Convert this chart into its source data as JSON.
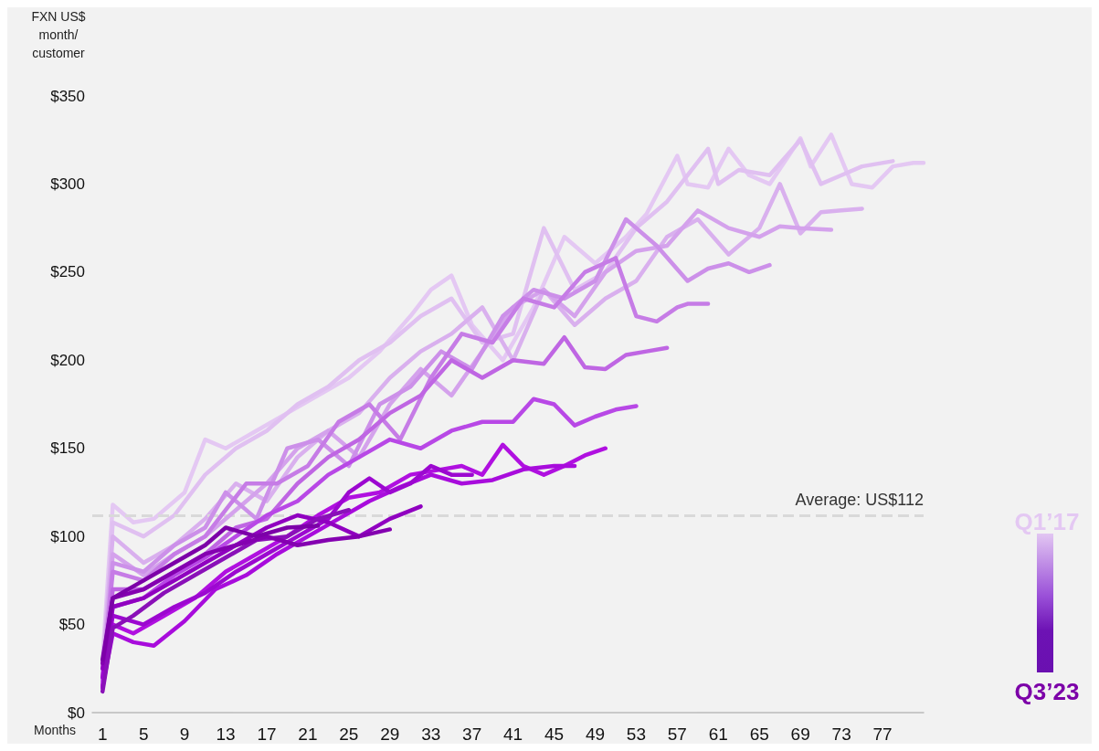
{
  "chart_data": {
    "type": "line",
    "xlabel": "Months",
    "ylabel": "FXN US$ month/ customer",
    "xlim": [
      0,
      81
    ],
    "ylim": [
      0,
      350
    ],
    "xticks": [
      1,
      5,
      9,
      13,
      17,
      21,
      25,
      29,
      33,
      37,
      41,
      45,
      49,
      53,
      57,
      61,
      65,
      69,
      73,
      77
    ],
    "yticks": [
      {
        "value": 0,
        "label": "$0"
      },
      {
        "value": 50,
        "label": "$50"
      },
      {
        "value": 100,
        "label": "$100"
      },
      {
        "value": 150,
        "label": "$150"
      },
      {
        "value": 200,
        "label": "$200"
      },
      {
        "value": 250,
        "label": "$250"
      },
      {
        "value": 300,
        "label": "$300"
      },
      {
        "value": 350,
        "label": "$350"
      }
    ],
    "marker": "none",
    "line_style": "solid",
    "ref_lines": [
      {
        "axis": "y",
        "value": 112,
        "label": "Average: US$112",
        "color": "#d9d9d9",
        "line_style": "dashed"
      }
    ],
    "annotations": [
      "Q1’17",
      "Q3’23"
    ],
    "series": [
      {
        "color": "#e4c8f3",
        "x": [
          1,
          2,
          4,
          6,
          9,
          11,
          13,
          16,
          19,
          22,
          25,
          28,
          31,
          33,
          35,
          37,
          40,
          43,
          46,
          49,
          52,
          54,
          57,
          58,
          60,
          62,
          64,
          66,
          69,
          70,
          72,
          74,
          76,
          78,
          80,
          81
        ],
        "values": [
          30,
          118,
          108,
          110,
          125,
          155,
          150,
          160,
          170,
          180,
          190,
          205,
          225,
          240,
          248,
          220,
          200,
          230,
          270,
          255,
          270,
          283,
          316,
          300,
          298,
          320,
          305,
          300,
          326,
          310,
          328,
          300,
          298,
          310,
          312,
          312
        ]
      },
      {
        "color": "#e0c0f1",
        "x": [
          1,
          2,
          5,
          8,
          11,
          14,
          17,
          20,
          23,
          26,
          29,
          32,
          35,
          38,
          41,
          44,
          47,
          50,
          53,
          56,
          60,
          61,
          63,
          66,
          69,
          71,
          73,
          75,
          78
        ],
        "values": [
          22,
          108,
          100,
          112,
          135,
          150,
          160,
          175,
          185,
          200,
          210,
          225,
          235,
          210,
          215,
          275,
          240,
          250,
          275,
          290,
          320,
          300,
          308,
          305,
          325,
          300,
          305,
          310,
          313
        ]
      },
      {
        "color": "#d9b0ee",
        "x": [
          1,
          2,
          5,
          8,
          11,
          14,
          17,
          20,
          23,
          26,
          29,
          32,
          35,
          38,
          41,
          44,
          47,
          50,
          53,
          56,
          59,
          62,
          65,
          67,
          69,
          71,
          73,
          75
        ],
        "values": [
          25,
          100,
          85,
          95,
          110,
          130,
          120,
          145,
          160,
          170,
          190,
          205,
          215,
          230,
          200,
          240,
          220,
          235,
          245,
          270,
          280,
          260,
          275,
          300,
          272,
          284,
          285,
          286
        ]
      },
      {
        "color": "#d4a2ec",
        "x": [
          1,
          2,
          5,
          8,
          11,
          14,
          17,
          20,
          23,
          26,
          29,
          32,
          35,
          38,
          41,
          44,
          47,
          50,
          53,
          56,
          59,
          62,
          65,
          67,
          69,
          72
        ],
        "values": [
          20,
          90,
          78,
          90,
          100,
          115,
          130,
          150,
          160,
          145,
          175,
          195,
          180,
          205,
          230,
          240,
          225,
          250,
          262,
          265,
          285,
          275,
          270,
          276,
          275,
          274
        ]
      },
      {
        "color": "#cc90e9",
        "x": [
          1,
          2,
          5,
          8,
          11,
          13,
          16,
          19,
          22,
          25,
          28,
          31,
          34,
          37,
          40,
          43,
          46,
          49,
          52,
          55,
          58,
          60,
          62,
          64,
          66
        ],
        "values": [
          18,
          85,
          80,
          95,
          105,
          125,
          110,
          150,
          155,
          140,
          175,
          185,
          205,
          195,
          225,
          240,
          235,
          245,
          280,
          265,
          245,
          252,
          255,
          250,
          254
        ]
      },
      {
        "color": "#c67ce6",
        "x": [
          1,
          2,
          5,
          8,
          11,
          13,
          15,
          18,
          21,
          24,
          27,
          30,
          33,
          36,
          39,
          42,
          45,
          48,
          51,
          53,
          55,
          57,
          58,
          60
        ],
        "values": [
          20,
          80,
          75,
          90,
          100,
          115,
          130,
          130,
          140,
          165,
          175,
          155,
          190,
          215,
          210,
          235,
          230,
          250,
          258,
          225,
          222,
          230,
          232,
          232
        ]
      },
      {
        "color": "#bf66e3",
        "x": [
          1,
          2,
          5,
          8,
          11,
          14,
          17,
          20,
          23,
          26,
          29,
          32,
          35,
          38,
          41,
          44,
          46,
          48,
          50,
          52,
          54,
          56
        ],
        "values": [
          18,
          70,
          70,
          80,
          90,
          105,
          110,
          130,
          145,
          155,
          170,
          180,
          200,
          190,
          200,
          198,
          213,
          196,
          195,
          203,
          205,
          207
        ]
      },
      {
        "color": "#b848e6",
        "x": [
          1,
          2,
          5,
          8,
          11,
          14,
          17,
          20,
          23,
          26,
          29,
          32,
          35,
          38,
          41,
          43,
          45,
          47,
          49,
          51,
          53
        ],
        "values": [
          15,
          60,
          65,
          78,
          88,
          100,
          112,
          120,
          135,
          145,
          155,
          150,
          160,
          165,
          165,
          178,
          175,
          163,
          168,
          172,
          174
        ]
      },
      {
        "color": "#b010e0",
        "x": [
          1,
          2,
          4,
          7,
          10,
          13,
          16,
          19,
          22,
          25,
          28,
          31,
          34,
          36,
          38,
          40,
          42,
          44,
          46,
          48,
          50
        ],
        "values": [
          14,
          50,
          45,
          55,
          65,
          80,
          90,
          100,
          112,
          122,
          125,
          135,
          138,
          140,
          135,
          152,
          140,
          135,
          140,
          146,
          150
        ]
      },
      {
        "color": "#a80cdc",
        "x": [
          1,
          2,
          4,
          6,
          9,
          12,
          15,
          18,
          21,
          24,
          27,
          30,
          33,
          36,
          39,
          42,
          45,
          47
        ],
        "values": [
          15,
          45,
          40,
          38,
          52,
          70,
          78,
          90,
          100,
          110,
          120,
          128,
          135,
          130,
          132,
          138,
          140,
          140
        ]
      },
      {
        "color": "#9c08d0",
        "x": [
          1,
          2,
          5,
          8,
          11,
          14,
          17,
          20,
          23,
          25,
          27,
          29,
          31,
          33,
          35,
          37
        ],
        "values": [
          20,
          55,
          50,
          60,
          68,
          80,
          90,
          100,
          110,
          125,
          133,
          125,
          130,
          140,
          135,
          135
        ]
      },
      {
        "color": "#9000c0",
        "x": [
          1,
          2,
          5,
          8,
          11,
          14,
          17,
          20,
          23,
          26,
          29,
          32
        ],
        "values": [
          25,
          60,
          65,
          75,
          85,
          95,
          105,
          112,
          108,
          100,
          110,
          117
        ]
      },
      {
        "color": "#8a10b8",
        "x": [
          1,
          2,
          4,
          7,
          10,
          13,
          16,
          19,
          22,
          25
        ],
        "values": [
          12,
          48,
          55,
          68,
          78,
          88,
          98,
          100,
          110,
          115
        ]
      },
      {
        "color": "#8400b0",
        "x": [
          1,
          2,
          5,
          8,
          11,
          14,
          17,
          20,
          23,
          26,
          29
        ],
        "values": [
          28,
          65,
          70,
          80,
          90,
          95,
          100,
          95,
          98,
          100,
          104
        ]
      },
      {
        "color": "#7c00a8",
        "x": [
          1,
          2,
          5,
          8,
          11,
          13,
          16,
          19,
          22
        ],
        "values": [
          30,
          65,
          75,
          85,
          95,
          105,
          100,
          105,
          106
        ]
      }
    ]
  }
}
